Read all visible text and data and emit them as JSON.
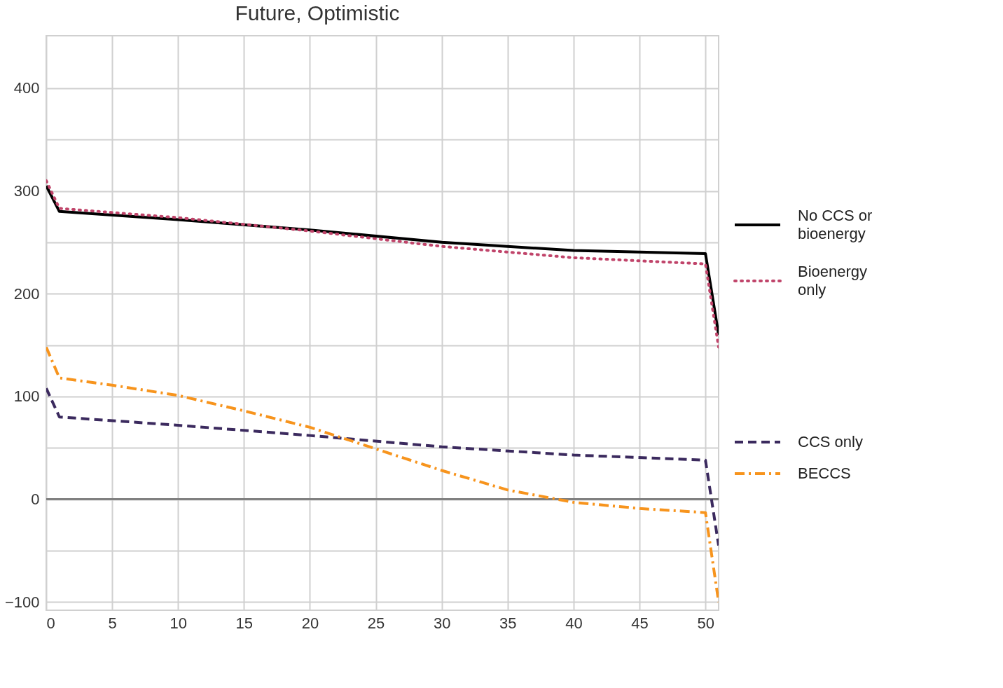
{
  "chart_data": {
    "type": "line",
    "title": "Future, Optimistic",
    "xlim": [
      0,
      51
    ],
    "xticks": [
      0,
      5,
      10,
      15,
      20,
      25,
      30,
      35,
      40,
      45,
      50
    ],
    "ylim": [
      -108,
      451
    ],
    "yticks": [
      {
        "value": -100,
        "label": "−100"
      },
      {
        "value": -50,
        "label": null
      },
      0,
      {
        "value": 50,
        "label": null
      },
      100,
      {
        "value": 150,
        "label": null
      },
      200,
      {
        "value": 250,
        "label": null
      },
      300,
      {
        "value": 350,
        "label": null
      },
      400
    ],
    "grid": true,
    "legend": "right",
    "marker": "none",
    "ref_lines": [
      {
        "axis": "y",
        "value": 0,
        "color": "#808080"
      }
    ],
    "series": [
      {
        "name": "No CCS or bioenergy",
        "color": "#000000",
        "line_style": "solid",
        "x": [
          0,
          1,
          10,
          20,
          30,
          40,
          50,
          51
        ],
        "values": [
          305,
          280,
          272,
          262,
          250,
          242,
          239,
          160
        ]
      },
      {
        "name": "Bioenergy only",
        "color": "#c0446a",
        "line_style": "dotted",
        "x": [
          0,
          1,
          10,
          20,
          30,
          40,
          50,
          51
        ],
        "values": [
          310,
          283,
          274,
          261,
          246,
          235,
          229,
          148
        ]
      },
      {
        "name": "CCS only",
        "color": "#3b2a5e",
        "line_style": "dashed",
        "x": [
          0,
          1,
          10,
          20,
          30,
          40,
          50,
          51
        ],
        "values": [
          108,
          80,
          72,
          62,
          51,
          43,
          38,
          -45
        ]
      },
      {
        "name": "BECCS",
        "color": "#f7941d",
        "line_style": "dashdot",
        "x": [
          0,
          1,
          5,
          10,
          15,
          20,
          25,
          30,
          35,
          40,
          45,
          50,
          51
        ],
        "values": [
          148,
          118,
          111,
          101,
          86,
          70,
          49,
          28,
          9,
          -3,
          -9,
          -13,
          -100
        ]
      }
    ]
  }
}
